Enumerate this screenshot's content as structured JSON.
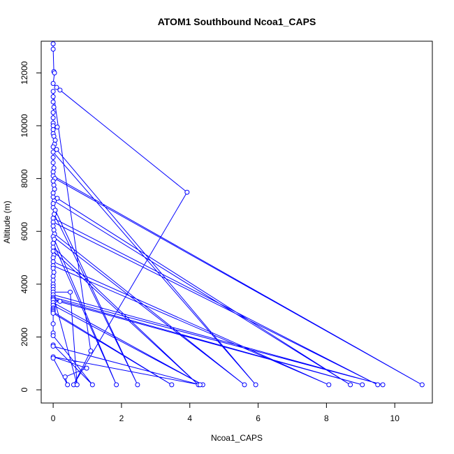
{
  "chart_data": {
    "type": "scatter",
    "title": "ATOM1 Southbound Ncoa1_CAPS",
    "xlabel": "Ncoa1_CAPS",
    "ylabel": "Altitude (m)",
    "xlim": [
      -0.35,
      11.1
    ],
    "ylim": [
      -500,
      13200
    ],
    "xticks": [
      0,
      2,
      4,
      6,
      8,
      10
    ],
    "yticks": [
      0,
      2000,
      4000,
      6000,
      8000,
      10000,
      12000
    ],
    "grid": false,
    "legend": "none",
    "color": "#0000ff",
    "series": [
      {
        "mode": "lines+markers",
        "points": [
          [
            0.0,
            13100
          ],
          [
            0.0,
            12900
          ],
          [
            0.02,
            12050
          ],
          [
            0.04,
            12000
          ],
          [
            0.0,
            11600
          ],
          [
            0.1,
            11450
          ],
          [
            0.2,
            11350
          ],
          [
            3.92,
            7480
          ],
          [
            0.6,
            190
          ],
          [
            1.1,
            1470
          ],
          [
            0.0,
            11300
          ],
          [
            0.0,
            11100
          ],
          [
            0.0,
            10900
          ],
          [
            0.02,
            10700
          ],
          [
            0.0,
            10500
          ],
          [
            0.0,
            10300
          ],
          [
            0.0,
            10100
          ],
          [
            0.0,
            10000
          ],
          [
            0.12,
            9950
          ],
          [
            0.0,
            9850
          ],
          [
            0.0,
            9700
          ],
          [
            0.02,
            9600
          ],
          [
            0.06,
            9450
          ],
          [
            0.04,
            9300
          ],
          [
            0.0,
            9200
          ],
          [
            0.1,
            9100
          ],
          [
            5.93,
            190
          ],
          [
            0.0,
            9000
          ],
          [
            0.0,
            8800
          ],
          [
            0.0,
            8600
          ],
          [
            0.02,
            8400
          ],
          [
            0.0,
            8250
          ],
          [
            0.0,
            8100
          ],
          [
            10.8,
            190
          ],
          [
            0.05,
            8000
          ],
          [
            0.0,
            7900
          ],
          [
            0.02,
            7750
          ],
          [
            0.04,
            7600
          ],
          [
            0.0,
            7450
          ],
          [
            0.0,
            7300
          ],
          [
            0.12,
            7250
          ],
          [
            8.7,
            190
          ],
          [
            0.03,
            7150
          ],
          [
            0.0,
            7050
          ],
          [
            0.0,
            6900
          ],
          [
            0.06,
            6800
          ],
          [
            2.47,
            190
          ],
          [
            0.03,
            6650
          ],
          [
            0.0,
            6500
          ],
          [
            9.5,
            190
          ],
          [
            0.0,
            6350
          ],
          [
            0.0,
            6200
          ],
          [
            0.02,
            6050
          ],
          [
            0.04,
            5900
          ],
          [
            5.6,
            190
          ],
          [
            0.0,
            5800
          ],
          [
            0.03,
            5700
          ],
          [
            1.85,
            190
          ],
          [
            0.0,
            5550
          ],
          [
            0.0,
            5400
          ],
          [
            4.25,
            190
          ],
          [
            0.0,
            5250
          ],
          [
            0.02,
            5100
          ],
          [
            0.0,
            5000
          ],
          [
            0.0,
            4850
          ],
          [
            8.07,
            190
          ],
          [
            0.0,
            4700
          ],
          [
            0.0,
            4600
          ],
          [
            0.02,
            4450
          ],
          [
            0.0,
            4300
          ],
          [
            0.0,
            4150
          ],
          [
            0.0,
            4000
          ],
          [
            0.0,
            3900
          ],
          [
            0.0,
            3800
          ],
          [
            0.0,
            3700
          ],
          [
            0.5,
            3700
          ],
          [
            0.7,
            190
          ],
          [
            0.0,
            3600
          ],
          [
            9.65,
            190
          ],
          [
            0.0,
            3500
          ],
          [
            0.0,
            3450
          ],
          [
            9.05,
            190
          ],
          [
            0.0,
            3400
          ],
          [
            0.2,
            3350
          ],
          [
            0.0,
            3300
          ],
          [
            4.38,
            190
          ],
          [
            0.0,
            3200
          ],
          [
            0.0,
            3100
          ],
          [
            0.0,
            3050
          ],
          [
            0.0,
            3000
          ],
          [
            0.0,
            2950
          ],
          [
            3.47,
            190
          ],
          [
            0.0,
            2900
          ],
          [
            0.0,
            2500
          ],
          [
            0.0,
            2150
          ],
          [
            0.0,
            2050
          ],
          [
            1.15,
            190
          ],
          [
            0.0,
            1700
          ],
          [
            0.0,
            1650
          ],
          [
            4.3,
            190
          ],
          [
            0.0,
            1250
          ],
          [
            0.98,
            820
          ],
          [
            0.35,
            490
          ],
          [
            0.42,
            190
          ],
          [
            0.0,
            1200
          ]
        ]
      }
    ]
  }
}
